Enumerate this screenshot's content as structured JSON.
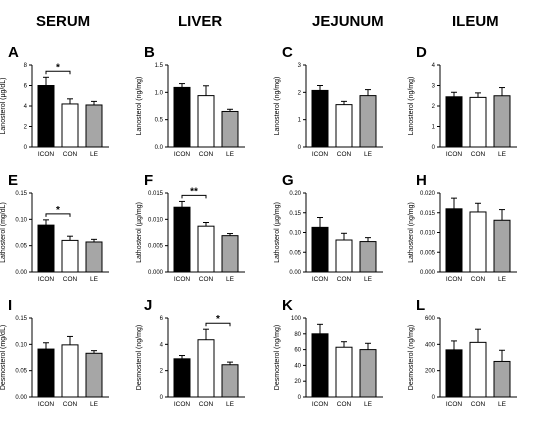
{
  "columns": [
    "SERUM",
    "LIVER",
    "JEJUNUM",
    "ILEUM"
  ],
  "chart_data": [
    {
      "type": "bar",
      "letter": "A",
      "ylabel": "Lanosterol (µg/dL)",
      "ylim": [
        0,
        8
      ],
      "ticks": [
        "0",
        "2",
        "4",
        "6",
        "8"
      ],
      "categories": [
        "ICON",
        "CON",
        "LE"
      ],
      "values": [
        6.0,
        4.2,
        4.1
      ],
      "errors": [
        0.8,
        0.5,
        0.35
      ],
      "sig": {
        "from": 0,
        "to": 1,
        "label": "*"
      }
    },
    {
      "type": "bar",
      "letter": "B",
      "ylabel": "Lanosterol (ng/mg)",
      "ylim": [
        0,
        1.5
      ],
      "ticks": [
        "0.0",
        "0.5",
        "1.0",
        "1.5"
      ],
      "categories": [
        "ICON",
        "CON",
        "LE"
      ],
      "values": [
        1.09,
        0.94,
        0.65
      ],
      "errors": [
        0.07,
        0.18,
        0.04
      ],
      "sig": null
    },
    {
      "type": "bar",
      "letter": "C",
      "ylabel": "Lanosterol (ng/mg)",
      "ylim": [
        0,
        3
      ],
      "ticks": [
        "0",
        "1",
        "2",
        "3"
      ],
      "categories": [
        "ICON",
        "CON",
        "LE"
      ],
      "values": [
        2.07,
        1.55,
        1.88
      ],
      "errors": [
        0.18,
        0.12,
        0.22
      ],
      "sig": null
    },
    {
      "type": "bar",
      "letter": "D",
      "ylabel": "Lanosterol (ng/mg)",
      "ylim": [
        0,
        4
      ],
      "ticks": [
        "0",
        "1",
        "2",
        "3",
        "4"
      ],
      "categories": [
        "ICON",
        "CON",
        "LE"
      ],
      "values": [
        2.45,
        2.42,
        2.5
      ],
      "errors": [
        0.22,
        0.22,
        0.4
      ],
      "sig": null
    },
    {
      "type": "bar",
      "letter": "E",
      "ylabel": "Lathosterol (mg/dL)",
      "ylim": [
        0,
        0.15
      ],
      "ticks": [
        "0.00",
        "0.05",
        "0.10",
        "0.15"
      ],
      "categories": [
        "ICON",
        "CON",
        "LE"
      ],
      "values": [
        0.089,
        0.06,
        0.057
      ],
      "errors": [
        0.01,
        0.008,
        0.005
      ],
      "sig": {
        "from": 0,
        "to": 1,
        "label": "*"
      }
    },
    {
      "type": "bar",
      "letter": "F",
      "ylabel": "Lathosterol (µg/mg)",
      "ylim": [
        0,
        0.015
      ],
      "ticks": [
        "0.000",
        "0.005",
        "0.010",
        "0.015"
      ],
      "categories": [
        "ICON",
        "CON",
        "LE"
      ],
      "values": [
        0.0123,
        0.0087,
        0.0069
      ],
      "errors": [
        0.0011,
        0.0007,
        0.0004
      ],
      "sig": {
        "from": 0,
        "to": 1,
        "label": "**"
      }
    },
    {
      "type": "bar",
      "letter": "G",
      "ylabel": "Lathosterol (µg/mg)",
      "ylim": [
        0,
        0.2
      ],
      "ticks": [
        "0.00",
        "0.05",
        "0.10",
        "0.15",
        "0.20"
      ],
      "categories": [
        "ICON",
        "CON",
        "LE"
      ],
      "values": [
        0.113,
        0.081,
        0.077
      ],
      "errors": [
        0.025,
        0.017,
        0.01
      ],
      "sig": null
    },
    {
      "type": "bar",
      "letter": "H",
      "ylabel": "Lathosterol (ng/mg)",
      "ylim": [
        0,
        0.02
      ],
      "ticks": [
        "0.000",
        "0.005",
        "0.010",
        "0.015",
        "0.020"
      ],
      "categories": [
        "ICON",
        "CON",
        "LE"
      ],
      "values": [
        0.016,
        0.0152,
        0.0131
      ],
      "errors": [
        0.0027,
        0.0022,
        0.0027
      ],
      "sig": null
    },
    {
      "type": "bar",
      "letter": "I",
      "ylabel": "Desmosterol (mg/dL)",
      "ylim": [
        0,
        0.15
      ],
      "ticks": [
        "0.00",
        "0.05",
        "0.10",
        "0.15"
      ],
      "categories": [
        "ICON",
        "CON",
        "LE"
      ],
      "values": [
        0.091,
        0.099,
        0.083
      ],
      "errors": [
        0.012,
        0.016,
        0.005
      ],
      "sig": null
    },
    {
      "type": "bar",
      "letter": "J",
      "ylabel": "Desmosterol (ng/mg)",
      "ylim": [
        0,
        6
      ],
      "ticks": [
        "0",
        "2",
        "4",
        "6"
      ],
      "categories": [
        "ICON",
        "CON",
        "LE"
      ],
      "values": [
        2.9,
        4.35,
        2.45
      ],
      "errors": [
        0.25,
        0.8,
        0.2
      ],
      "sig": {
        "from": 1,
        "to": 2,
        "label": "*"
      }
    },
    {
      "type": "bar",
      "letter": "K",
      "ylabel": "Desmosterol (ng/mg)",
      "ylim": [
        0,
        100
      ],
      "ticks": [
        "0",
        "20",
        "40",
        "60",
        "80",
        "100"
      ],
      "categories": [
        "ICON",
        "CON",
        "LE"
      ],
      "values": [
        80,
        63,
        60
      ],
      "errors": [
        12,
        7,
        8
      ],
      "sig": null
    },
    {
      "type": "bar",
      "letter": "L",
      "ylabel": "Desmosterol (ng/mg)",
      "ylim": [
        0,
        600
      ],
      "ticks": [
        "0",
        "200",
        "400",
        "600"
      ],
      "categories": [
        "ICON",
        "CON",
        "LE"
      ],
      "values": [
        358,
        415,
        270
      ],
      "errors": [
        68,
        100,
        85
      ],
      "sig": null
    }
  ],
  "colors": {
    "ICON": "#000000",
    "CON": "#ffffff",
    "LE": "#a6a6a6",
    "axis": "#000000"
  }
}
